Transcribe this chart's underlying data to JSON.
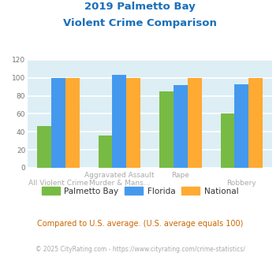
{
  "title_line1": "2019 Palmetto Bay",
  "title_line2": "Violent Crime Comparison",
  "title_color": "#1a6fba",
  "series": {
    "Palmetto Bay": [
      46,
      36,
      85,
      60
    ],
    "Florida": [
      100,
      103,
      92,
      93
    ],
    "National": [
      100,
      100,
      100,
      100
    ]
  },
  "colors": {
    "Palmetto Bay": "#77bb44",
    "Florida": "#4499ee",
    "National": "#ffaa33"
  },
  "x_top_labels": [
    "",
    "Aggravated Assault",
    "Rape",
    ""
  ],
  "x_bottom_labels": [
    "All Violent Crime",
    "Murder & Mans...",
    "",
    "Robbery"
  ],
  "ylim": [
    0,
    120
  ],
  "yticks": [
    0,
    20,
    40,
    60,
    80,
    100,
    120
  ],
  "fig_bg_color": "#ffffff",
  "plot_bg_color": "#ddeef5",
  "grid_color": "#ffffff",
  "footnote": "Compared to U.S. average. (U.S. average equals 100)",
  "footnote_color": "#cc6600",
  "copyright": "© 2025 CityRating.com - https://www.cityrating.com/crime-statistics/",
  "copyright_color": "#aaaaaa",
  "xlabel_color": "#aaaaaa"
}
